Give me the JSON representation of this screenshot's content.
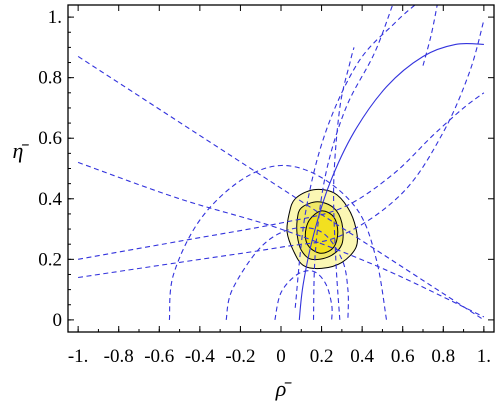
{
  "chart_data": {
    "type": "contour",
    "xlabel": "ρ̄",
    "ylabel": "η̄",
    "xlim": [
      -1.05,
      1.05
    ],
    "ylim": [
      -0.04,
      1.04
    ],
    "x_ticks": [
      {
        "value": -1.0,
        "label": "-1."
      },
      {
        "value": -0.8,
        "label": "-0.8"
      },
      {
        "value": -0.6,
        "label": "-0.6"
      },
      {
        "value": -0.4,
        "label": "-0.4"
      },
      {
        "value": -0.2,
        "label": "-0.2"
      },
      {
        "value": 0.0,
        "label": "0"
      },
      {
        "value": 0.2,
        "label": "0.2"
      },
      {
        "value": 0.4,
        "label": "0.4"
      },
      {
        "value": 0.6,
        "label": "0.6"
      },
      {
        "value": 0.8,
        "label": "0.8"
      },
      {
        "value": 1.0,
        "label": "1."
      }
    ],
    "y_ticks": [
      {
        "value": 0.0,
        "label": "0"
      },
      {
        "value": 0.2,
        "label": "0.2"
      },
      {
        "value": 0.4,
        "label": "0.4"
      },
      {
        "value": 0.6,
        "label": "0.6"
      },
      {
        "value": 0.8,
        "label": "0.8"
      },
      {
        "value": 1.0,
        "label": "1."
      }
    ],
    "grid": false,
    "legend": "none",
    "colors": {
      "constraint_line": "#3333dd",
      "region_outer": "#fbf7b4",
      "region_inner": "#f0e866",
      "region_core": "#f2e020",
      "contour_edge": "#000000"
    },
    "regions": [
      {
        "level": "outer",
        "points": [
          [
            0.07,
            0.4
          ],
          [
            0.16,
            0.43
          ],
          [
            0.26,
            0.42
          ],
          [
            0.33,
            0.37
          ],
          [
            0.37,
            0.3
          ],
          [
            0.37,
            0.24
          ],
          [
            0.3,
            0.19
          ],
          [
            0.2,
            0.17
          ],
          [
            0.11,
            0.18
          ],
          [
            0.06,
            0.23
          ],
          [
            0.03,
            0.29
          ],
          [
            0.04,
            0.35
          ]
        ]
      },
      {
        "level": "inner",
        "points": [
          [
            0.1,
            0.37
          ],
          [
            0.18,
            0.39
          ],
          [
            0.26,
            0.37
          ],
          [
            0.3,
            0.32
          ],
          [
            0.3,
            0.25
          ],
          [
            0.24,
            0.21
          ],
          [
            0.15,
            0.2
          ],
          [
            0.1,
            0.23
          ],
          [
            0.08,
            0.28
          ],
          [
            0.08,
            0.33
          ]
        ]
      },
      {
        "level": "core",
        "points": [
          [
            0.14,
            0.33
          ],
          [
            0.2,
            0.36
          ],
          [
            0.26,
            0.34
          ],
          [
            0.28,
            0.29
          ],
          [
            0.26,
            0.24
          ],
          [
            0.2,
            0.22
          ],
          [
            0.14,
            0.24
          ],
          [
            0.12,
            0.28
          ]
        ]
      }
    ],
    "curves": [
      {
        "style": "solid",
        "points": [
          [
            0.09,
            0.0
          ],
          [
            0.11,
            0.12
          ],
          [
            0.16,
            0.28
          ],
          [
            0.24,
            0.45
          ],
          [
            0.36,
            0.62
          ],
          [
            0.52,
            0.77
          ],
          [
            0.7,
            0.87
          ],
          [
            0.86,
            0.91
          ],
          [
            1.0,
            0.91
          ]
        ]
      },
      {
        "style": "dashed",
        "points": [
          [
            -1.0,
            0.87
          ],
          [
            1.0,
            0.0
          ]
        ]
      },
      {
        "style": "dashed",
        "points": [
          [
            -1.0,
            0.52
          ],
          [
            -0.5,
            0.4
          ],
          [
            0.0,
            0.3
          ],
          [
            0.5,
            0.17
          ],
          [
            1.0,
            0.01
          ]
        ]
      },
      {
        "style": "dashed",
        "points": [
          [
            -1.0,
            0.14
          ],
          [
            -0.5,
            0.19
          ],
          [
            0.0,
            0.24
          ],
          [
            0.3,
            0.28
          ],
          [
            0.6,
            0.42
          ],
          [
            0.8,
            0.62
          ],
          [
            0.93,
            0.82
          ],
          [
            1.0,
            0.99
          ]
        ]
      },
      {
        "style": "dashed",
        "points": [
          [
            -1.0,
            0.2
          ],
          [
            -0.5,
            0.26
          ],
          [
            0.0,
            0.32
          ],
          [
            0.3,
            0.37
          ],
          [
            0.55,
            0.48
          ],
          [
            0.75,
            0.61
          ],
          [
            0.9,
            0.7
          ],
          [
            1.0,
            0.75
          ]
        ]
      },
      {
        "style": "dashed",
        "points": [
          [
            -0.55,
            0.0
          ],
          [
            -0.53,
            0.15
          ],
          [
            -0.4,
            0.33
          ],
          [
            -0.2,
            0.46
          ],
          [
            0.0,
            0.51
          ],
          [
            0.2,
            0.47
          ],
          [
            0.38,
            0.36
          ],
          [
            0.47,
            0.2
          ],
          [
            0.52,
            0.0
          ]
        ]
      },
      {
        "style": "dashed",
        "points": [
          [
            -0.27,
            0.0
          ],
          [
            -0.24,
            0.1
          ],
          [
            -0.1,
            0.24
          ],
          [
            0.05,
            0.3
          ],
          [
            0.2,
            0.29
          ],
          [
            0.3,
            0.2
          ],
          [
            0.33,
            0.1
          ],
          [
            0.33,
            0.0
          ]
        ]
      },
      {
        "style": "dashed",
        "points": [
          [
            -0.03,
            0.0
          ],
          [
            0.0,
            0.09
          ],
          [
            0.08,
            0.15
          ],
          [
            0.16,
            0.16
          ],
          [
            0.22,
            0.12
          ],
          [
            0.25,
            0.05
          ],
          [
            0.25,
            0.0
          ]
        ]
      },
      {
        "style": "dashed",
        "points": [
          [
            0.07,
            0.04
          ],
          [
            0.12,
            0.35
          ],
          [
            0.22,
            0.62
          ],
          [
            0.38,
            0.85
          ],
          [
            0.56,
            0.98
          ],
          [
            0.66,
            1.04
          ]
        ]
      },
      {
        "style": "dashed",
        "points": [
          [
            0.16,
            0.0
          ],
          [
            0.17,
            0.23
          ],
          [
            0.22,
            0.48
          ],
          [
            0.32,
            0.7
          ],
          [
            0.46,
            0.88
          ],
          [
            0.55,
            1.04
          ]
        ]
      },
      {
        "style": "dashed",
        "points": [
          [
            0.29,
            0.0
          ],
          [
            0.27,
            0.2
          ],
          [
            0.26,
            0.45
          ],
          [
            0.29,
            0.7
          ],
          [
            0.34,
            0.85
          ],
          [
            0.36,
            0.9
          ]
        ]
      },
      {
        "style": "dashed",
        "points": [
          [
            0.7,
            0.84
          ],
          [
            0.74,
            0.94
          ],
          [
            0.77,
            1.04
          ]
        ]
      }
    ]
  }
}
